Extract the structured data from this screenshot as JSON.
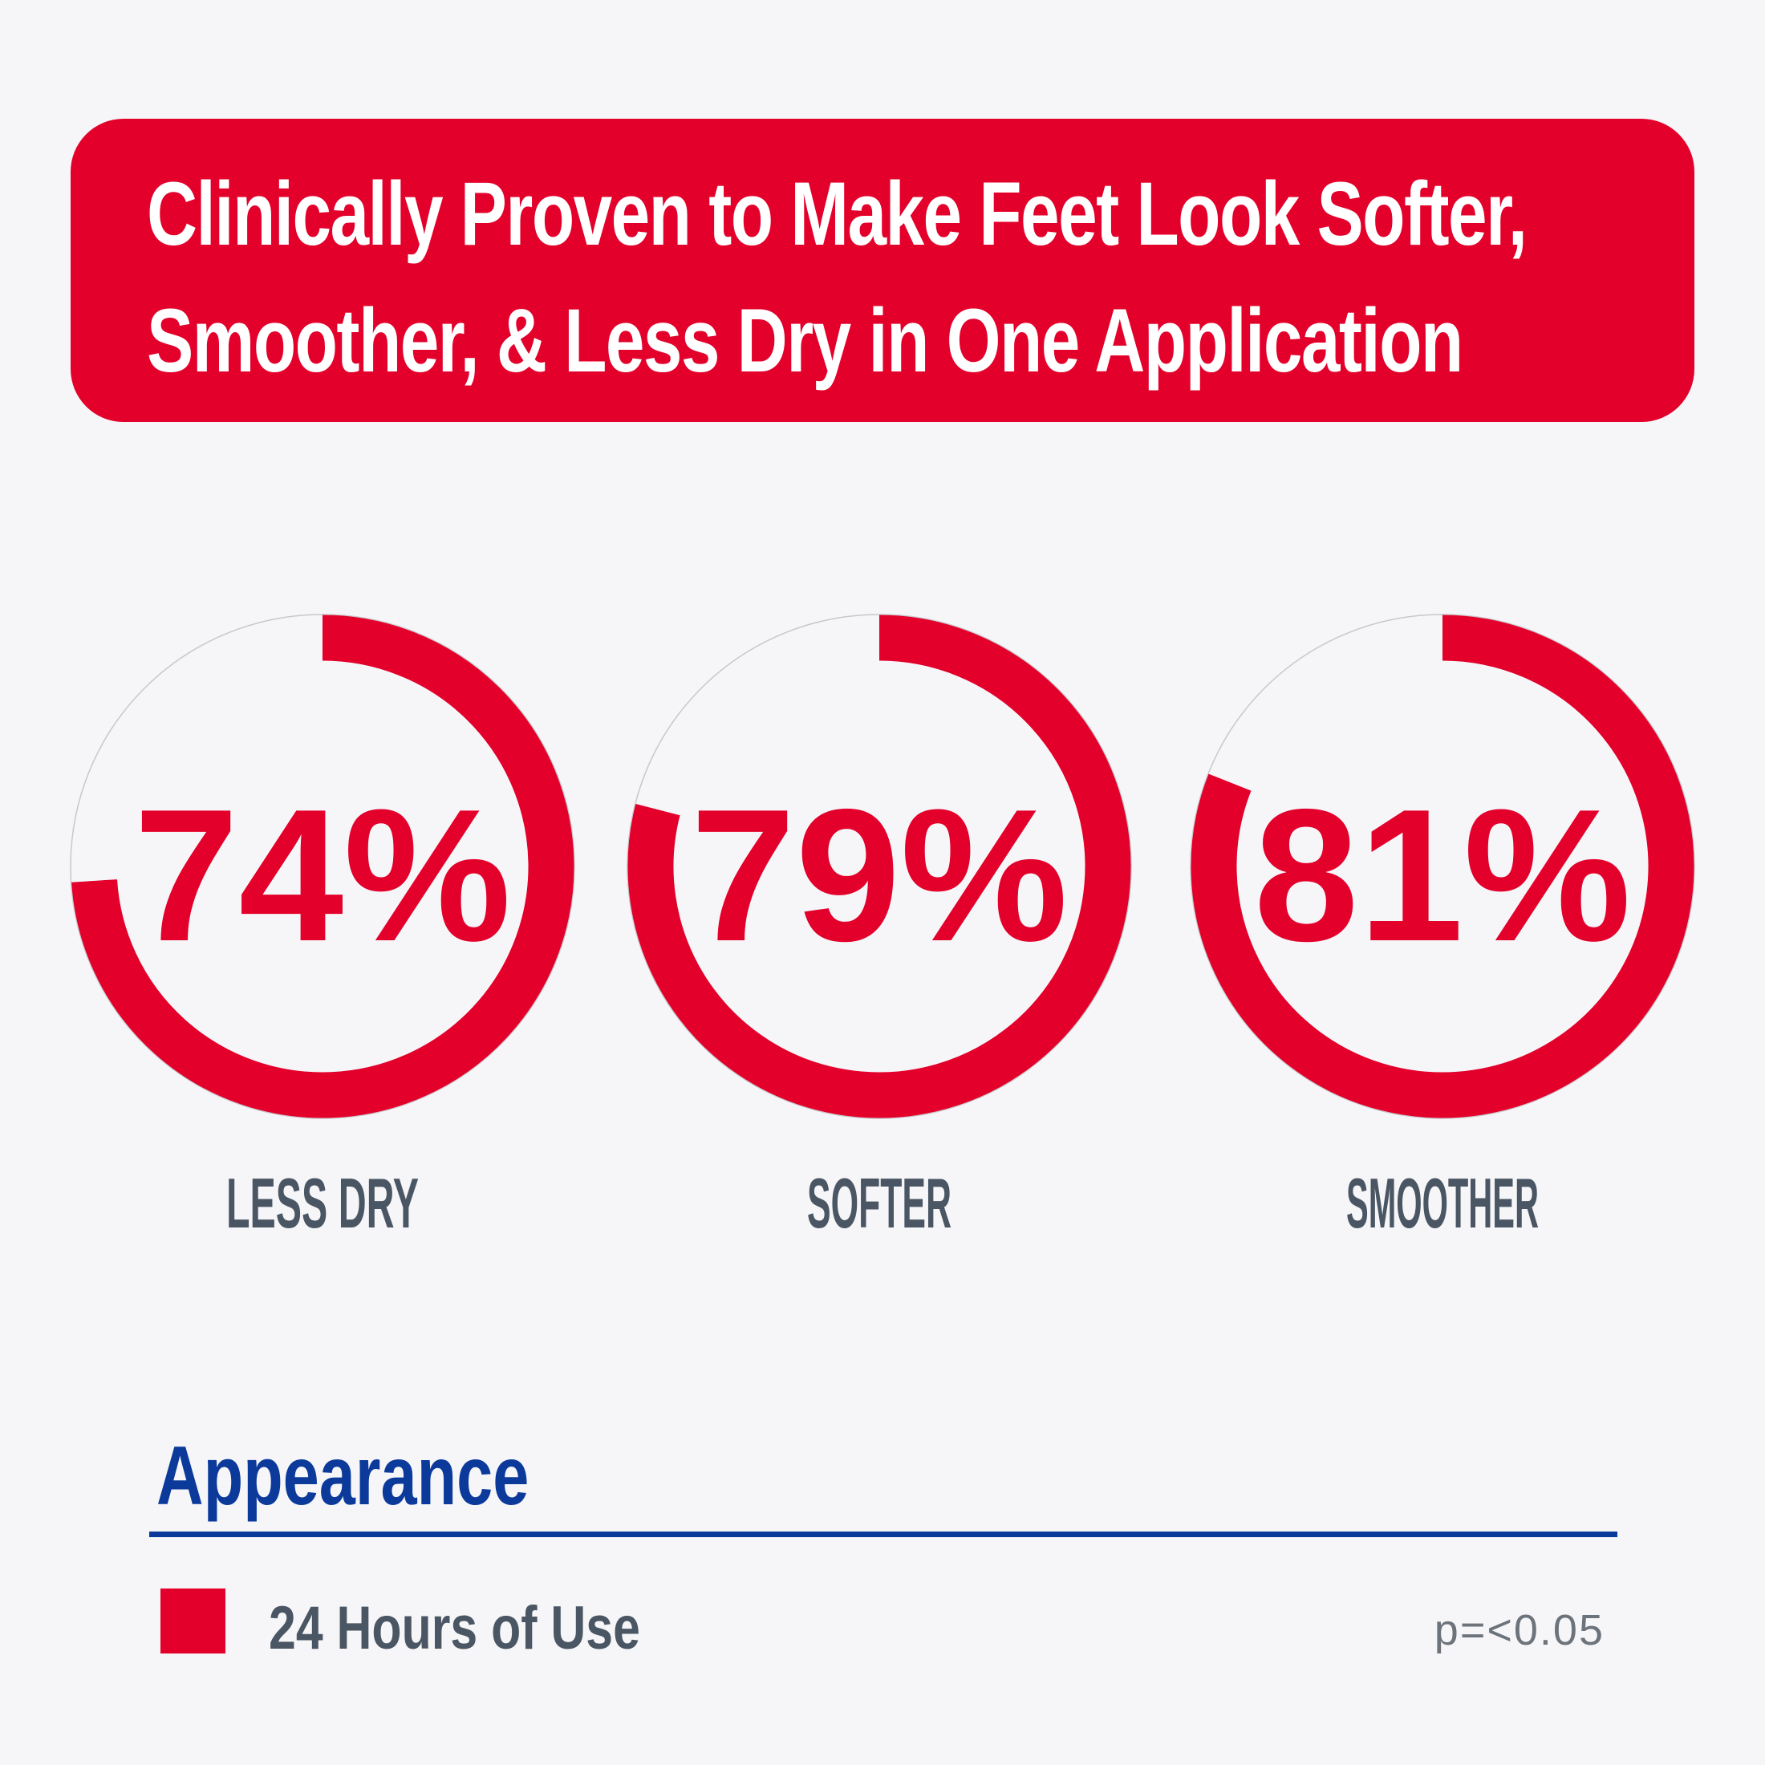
{
  "banner": {
    "title": "Clinically Proven to Make Feet Look Softer, Smoother, & Less Dry in One Application"
  },
  "colors": {
    "accent": "#e3002b",
    "heading_blue": "#0b3a9a",
    "label_gray": "#4a5663",
    "background": "#f6f6f9"
  },
  "chart_data": {
    "type": "pie",
    "style": "donut",
    "title": "Appearance",
    "categories": [
      "LESS DRY",
      "SOFTER",
      "SMOOTHER"
    ],
    "series": [
      {
        "name": "24 Hours of Use",
        "values": [
          74,
          79,
          81
        ]
      }
    ],
    "value_labels": [
      "74%",
      "79%",
      "81%"
    ],
    "unit": "%",
    "max": 100,
    "legend_position": "bottom-left"
  },
  "footnote": "p=<0.05"
}
